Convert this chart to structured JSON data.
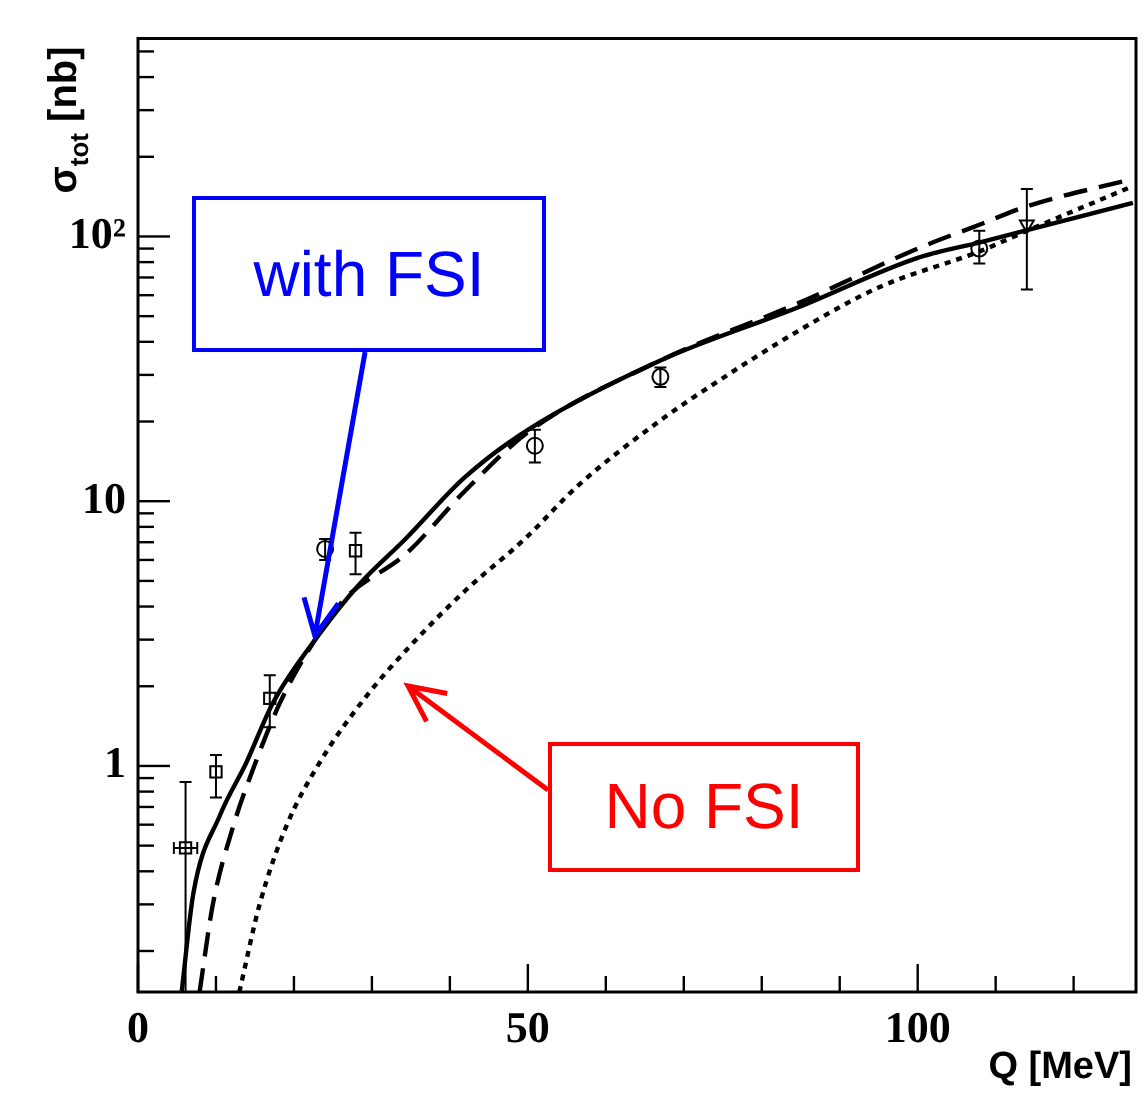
{
  "chart_data": {
    "type": "line",
    "xlabel": "Q [MeV]",
    "ylabel": "σ$_{tot}$ [nb]",
    "log": "y",
    "xlim": [
      0,
      128
    ],
    "xticks": [
      0,
      {
        "value": 10,
        "label": null
      },
      {
        "value": 20,
        "label": null
      },
      {
        "value": 30,
        "label": null
      },
      {
        "value": 40,
        "label": null
      },
      50,
      {
        "value": 60,
        "label": null
      },
      {
        "value": 70,
        "label": null
      },
      {
        "value": 80,
        "label": null
      },
      {
        "value": 90,
        "label": null
      },
      100,
      {
        "value": 110,
        "label": null
      },
      {
        "value": 120,
        "label": null
      }
    ],
    "ylim": [
      0.14,
      560
    ],
    "yticks": [
      {
        "value": 0.2,
        "label": null
      },
      {
        "value": 0.3,
        "label": null
      },
      {
        "value": 0.4,
        "label": null
      },
      {
        "value": 0.5,
        "label": null
      },
      {
        "value": 0.6,
        "label": null
      },
      {
        "value": 0.7,
        "label": null
      },
      {
        "value": 0.8,
        "label": null
      },
      {
        "value": 0.9,
        "label": null
      },
      1,
      {
        "value": 2,
        "label": null
      },
      {
        "value": 3,
        "label": null
      },
      {
        "value": 4,
        "label": null
      },
      {
        "value": 5,
        "label": null
      },
      {
        "value": 6,
        "label": null
      },
      {
        "value": 7,
        "label": null
      },
      {
        "value": 8,
        "label": null
      },
      {
        "value": 9,
        "label": null
      },
      10,
      {
        "value": 20,
        "label": null
      },
      {
        "value": 30,
        "label": null
      },
      {
        "value": 40,
        "label": null
      },
      {
        "value": 50,
        "label": null
      },
      {
        "value": 60,
        "label": null
      },
      {
        "value": 70,
        "label": null
      },
      {
        "value": 80,
        "label": null
      },
      {
        "value": 90,
        "label": null
      },
      {
        "value": 100,
        "label": "10²"
      },
      {
        "value": 200,
        "label": null
      },
      {
        "value": 300,
        "label": null
      },
      {
        "value": 400,
        "label": null
      },
      {
        "value": 500,
        "label": null
      }
    ],
    "grid": false,
    "legend": false,
    "series": [
      {
        "type": "line",
        "color": "#000000",
        "line_style": "solid",
        "marker": "none",
        "x": [
          5.6,
          7.1,
          10.5,
          13.9,
          17.3,
          23.3,
          28.4,
          34.3,
          41.9,
          50,
          67,
          84.7,
          100,
          108,
          127.6
        ],
        "values": [
          0.14,
          0.33,
          0.65,
          1.03,
          1.73,
          3.16,
          4.86,
          7.2,
          12.3,
          18.6,
          34,
          54,
          83,
          95,
          134
        ]
      },
      {
        "type": "line",
        "color": "#000000",
        "line_style": "dashed",
        "marker": "none",
        "x": [
          7.9,
          9.6,
          12.2,
          14.8,
          18.2,
          22.4,
          26.6,
          34.3,
          41.9,
          50,
          67,
          84.7,
          100,
          108,
          114,
          127.6
        ],
        "values": [
          0.14,
          0.3,
          0.59,
          0.98,
          1.73,
          2.9,
          4.3,
          6.3,
          10.9,
          18.2,
          34,
          56,
          90,
          111,
          130,
          165
        ]
      },
      {
        "type": "line",
        "color": "#000000",
        "line_style": "dotted",
        "marker": "none",
        "x": [
          13,
          15.6,
          19,
          23.3,
          29.2,
          35.2,
          42,
          49.6,
          56.5,
          67,
          74.4,
          84.7,
          94.9,
          108,
          114,
          127.6
        ],
        "values": [
          0.14,
          0.3,
          0.59,
          1.03,
          1.82,
          2.9,
          4.6,
          7.2,
          11.5,
          20.2,
          28.4,
          44,
          64,
          88,
          105,
          155
        ]
      },
      {
        "type": "scatter",
        "color": "#000000",
        "marker": "square",
        "x": [
          6.1,
          10,
          16.9,
          27.9
        ],
        "values": [
          0.49,
          0.95,
          1.8,
          6.5
        ],
        "errors": [
          [
            0.14,
            0.87
          ],
          [
            0.76,
            1.1
          ],
          [
            1.4,
            2.2
          ],
          [
            5.3,
            7.6
          ]
        ],
        "xerrors": [
          1.5,
          null,
          null,
          null
        ]
      },
      {
        "type": "scatter",
        "color": "#000000",
        "marker": "circle",
        "x": [
          24
        ],
        "values": [
          6.6
        ],
        "errors": [
          [
            6.0,
            7.2
          ]
        ]
      },
      {
        "type": "scatter",
        "color": "#000000",
        "marker": "circle",
        "x": [
          50.9,
          67,
          107.9
        ],
        "values": [
          16.2,
          29.5,
          90
        ],
        "errors": [
          [
            14,
            18.6
          ],
          [
            27,
            32
          ],
          [
            79,
            105
          ]
        ]
      },
      {
        "type": "scatter",
        "color": "#000000",
        "marker": "triangle",
        "x": [
          114
        ],
        "values": [
          111
        ],
        "errors": [
          [
            63,
            151
          ]
        ]
      }
    ],
    "annotations": [
      {
        "text": "with FSI",
        "x": 22.8,
        "y": 3.1
      },
      "No FSI"
    ]
  }
}
